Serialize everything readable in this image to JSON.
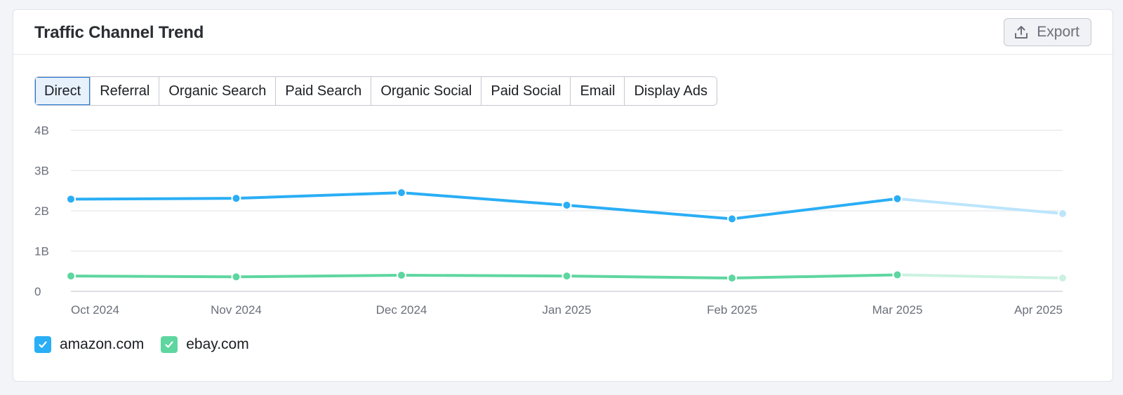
{
  "header": {
    "title": "Traffic Channel Trend",
    "export_label": "Export"
  },
  "tabs": [
    {
      "label": "Direct",
      "active": true
    },
    {
      "label": "Referral",
      "active": false
    },
    {
      "label": "Organic Search",
      "active": false
    },
    {
      "label": "Paid Search",
      "active": false
    },
    {
      "label": "Organic Social",
      "active": false
    },
    {
      "label": "Paid Social",
      "active": false
    },
    {
      "label": "Email",
      "active": false
    },
    {
      "label": "Display Ads",
      "active": false
    }
  ],
  "chart_data": {
    "type": "line",
    "x": [
      "Oct 2024",
      "Nov 2024",
      "Dec 2024",
      "Jan 2025",
      "Feb 2025",
      "Mar 2025",
      "Apr 2025"
    ],
    "ylim": [
      0,
      4000000000
    ],
    "yticks": [
      0,
      1000000000,
      2000000000,
      3000000000,
      4000000000
    ],
    "ytick_labels": [
      "0",
      "1B",
      "2B",
      "3B",
      "4B"
    ],
    "grid": true,
    "legend_position": "bottom-left",
    "series": [
      {
        "name": "amazon.com",
        "color": "#2aaef5",
        "values": [
          2290000000,
          2310000000,
          2450000000,
          2140000000,
          1800000000,
          2300000000,
          1930000000
        ]
      },
      {
        "name": "ebay.com",
        "color": "#5ed6a0",
        "values": [
          380000000,
          360000000,
          400000000,
          380000000,
          330000000,
          410000000,
          330000000
        ]
      }
    ],
    "projected_from_index": 5
  },
  "legend": [
    {
      "label": "amazon.com",
      "color": "#2aaef5",
      "checked": true
    },
    {
      "label": "ebay.com",
      "color": "#5ed6a0",
      "checked": true
    }
  ]
}
